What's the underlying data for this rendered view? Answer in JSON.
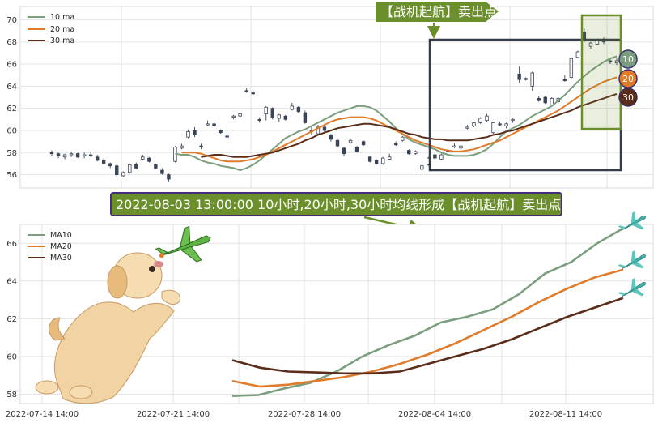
{
  "chart_data": [
    {
      "type": "candlestick",
      "ylim": [
        54.8,
        71.2
      ],
      "yticks": [
        56,
        58,
        60,
        62,
        64,
        66,
        68,
        70
      ],
      "grid": true,
      "legend_position": "top-left",
      "legend": [
        "10 ma",
        "20 ma",
        "30 ma"
      ],
      "colors": {
        "ma10": "#7a9e7e",
        "ma20": "#e07b2a",
        "ma30": "#5a2d1a",
        "up": "#ffffff",
        "down": "#3a4558"
      },
      "candles": [
        [
          58.0,
          58.2,
          57.7,
          57.9
        ],
        [
          57.9,
          58.0,
          57.5,
          57.7
        ],
        [
          57.6,
          57.9,
          57.4,
          57.8
        ],
        [
          57.8,
          58.1,
          57.6,
          57.9
        ],
        [
          57.9,
          58.0,
          57.5,
          57.6
        ],
        [
          57.7,
          58.0,
          57.5,
          57.8
        ],
        [
          57.8,
          58.1,
          57.6,
          57.7
        ],
        [
          57.6,
          57.8,
          57.2,
          57.3
        ],
        [
          57.3,
          57.5,
          56.9,
          57.0
        ],
        [
          57.0,
          57.1,
          56.6,
          56.8
        ],
        [
          56.8,
          57.0,
          55.8,
          56.0
        ],
        [
          55.9,
          56.3,
          55.8,
          56.2
        ],
        [
          56.2,
          57.0,
          56.1,
          56.9
        ],
        [
          56.9,
          57.1,
          56.5,
          56.6
        ],
        [
          57.4,
          57.8,
          57.3,
          57.6
        ],
        [
          57.5,
          57.6,
          57.1,
          57.2
        ],
        [
          56.9,
          57.0,
          56.5,
          56.6
        ],
        [
          56.4,
          56.6,
          56.0,
          56.1
        ],
        [
          56.0,
          56.1,
          55.4,
          55.6
        ],
        [
          57.2,
          58.6,
          57.1,
          58.5
        ],
        [
          58.4,
          58.8,
          58.3,
          58.6
        ],
        [
          59.4,
          60.1,
          59.3,
          59.9
        ],
        [
          60.0,
          60.3,
          59.4,
          59.6
        ],
        [
          58.6,
          58.8,
          58.3,
          58.5
        ],
        [
          60.5,
          60.9,
          60.4,
          60.6
        ],
        [
          60.6,
          60.7,
          60.3,
          60.4
        ],
        [
          60.0,
          60.1,
          59.7,
          59.8
        ],
        [
          59.5,
          59.7,
          59.3,
          59.4
        ],
        [
          61.2,
          61.4,
          61.0,
          61.3
        ],
        [
          61.3,
          61.6,
          61.2,
          61.5
        ],
        [
          63.6,
          63.8,
          63.4,
          63.5
        ],
        [
          63.4,
          63.6,
          63.2,
          63.3
        ],
        [
          61.0,
          61.2,
          60.7,
          60.9
        ],
        [
          61.5,
          62.2,
          60.9,
          62.1
        ],
        [
          62.0,
          62.1,
          61.0,
          61.2
        ],
        [
          61.1,
          61.5,
          60.8,
          61.4
        ],
        [
          61.3,
          61.4,
          60.9,
          61.0
        ],
        [
          61.9,
          62.5,
          61.8,
          62.2
        ],
        [
          62.1,
          62.2,
          61.6,
          61.7
        ],
        [
          61.6,
          61.8,
          60.6,
          60.7
        ],
        [
          60.0,
          60.3,
          59.6,
          59.9
        ],
        [
          59.7,
          60.5,
          59.6,
          60.3
        ],
        [
          60.3,
          60.6,
          59.8,
          60.0
        ],
        [
          59.6,
          59.7,
          59.0,
          59.2
        ],
        [
          59.1,
          59.2,
          58.5,
          58.6
        ],
        [
          58.4,
          58.5,
          57.7,
          57.9
        ],
        [
          58.9,
          59.2,
          58.8,
          59.1
        ],
        [
          58.5,
          58.6,
          58.0,
          58.1
        ],
        [
          59.0,
          59.1,
          58.6,
          58.7
        ],
        [
          57.6,
          57.7,
          57.1,
          57.2
        ],
        [
          57.3,
          57.4,
          56.9,
          57.0
        ],
        [
          57.0,
          57.6,
          56.9,
          57.5
        ],
        [
          57.4,
          57.9,
          57.3,
          57.6
        ],
        [
          58.8,
          59.0,
          58.6,
          58.7
        ],
        [
          59.1,
          59.5,
          59.0,
          59.4
        ],
        [
          58.2,
          58.3,
          57.8,
          57.9
        ],
        [
          57.9,
          58.2,
          57.8,
          58.1
        ],
        [
          56.5,
          56.9,
          56.4,
          56.8
        ],
        [
          56.9,
          57.6,
          56.8,
          57.5
        ],
        [
          57.8,
          58.1,
          57.3,
          57.5
        ],
        [
          57.4,
          57.9,
          57.3,
          57.8
        ],
        [
          58.2,
          58.4,
          57.9,
          58.1
        ],
        [
          58.5,
          58.9,
          58.4,
          58.6
        ],
        [
          58.4,
          58.7,
          58.3,
          58.6
        ],
        [
          60.2,
          60.5,
          60.1,
          60.3
        ],
        [
          60.4,
          60.8,
          60.3,
          60.7
        ],
        [
          60.7,
          61.2,
          60.6,
          61.1
        ],
        [
          60.9,
          61.5,
          60.8,
          61.3
        ],
        [
          59.8,
          60.8,
          59.7,
          60.7
        ],
        [
          60.6,
          60.8,
          60.4,
          60.5
        ],
        [
          60.4,
          60.7,
          60.2,
          60.6
        ],
        [
          60.9,
          61.1,
          60.7,
          61.0
        ],
        [
          65.1,
          65.8,
          64.3,
          64.6
        ],
        [
          64.7,
          64.8,
          64.5,
          64.6
        ],
        [
          64.0,
          65.3,
          63.6,
          65.2
        ],
        [
          62.9,
          63.1,
          62.6,
          62.7
        ],
        [
          63.0,
          63.1,
          62.4,
          62.5
        ],
        [
          62.3,
          63.0,
          62.2,
          62.9
        ],
        [
          62.6,
          63.0,
          62.5,
          62.9
        ],
        [
          64.6,
          65.0,
          64.4,
          64.5
        ],
        [
          64.8,
          66.6,
          64.6,
          66.5
        ],
        [
          66.6,
          67.2,
          66.5,
          67.1
        ],
        [
          68.9,
          69.2,
          68.0,
          68.1
        ],
        [
          67.6,
          68.0,
          67.4,
          67.9
        ],
        [
          67.8,
          68.3,
          67.7,
          68.2
        ],
        [
          68.2,
          68.4,
          67.8,
          68.0
        ],
        [
          66.3,
          66.4,
          66.0,
          66.2
        ],
        [
          66.1,
          66.5,
          65.9,
          66.3
        ]
      ],
      "ma10": [
        57.9,
        57.8,
        57.8,
        57.6,
        57.3,
        57.1,
        57.0,
        56.8,
        56.7,
        56.6,
        56.4,
        56.6,
        56.9,
        57.3,
        57.8,
        58.3,
        58.8,
        59.3,
        59.6,
        59.9,
        60.1,
        60.4,
        60.7,
        61.0,
        61.3,
        61.6,
        61.8,
        62.0,
        62.2,
        62.2,
        62.1,
        61.8,
        61.3,
        60.8,
        60.2,
        59.7,
        59.2,
        58.9,
        58.7,
        58.5,
        58.3,
        58.0,
        57.8,
        57.7,
        57.7,
        57.7,
        57.8,
        58.0,
        58.3,
        58.8,
        59.4,
        59.9,
        60.2,
        60.5,
        60.9,
        61.3,
        61.6,
        61.9,
        62.2,
        62.7,
        63.2,
        63.8,
        64.4,
        64.9,
        65.4,
        65.8,
        66.2,
        66.5,
        66.7
      ],
      "ma20": [
        58.0,
        58.0,
        58.0,
        57.9,
        57.7,
        57.5,
        57.3,
        57.2,
        57.2,
        57.2,
        57.3,
        57.4,
        57.6,
        57.8,
        58.1,
        58.4,
        58.7,
        59.0,
        59.3,
        59.6,
        59.9,
        60.2,
        60.5,
        60.8,
        61.0,
        61.1,
        61.2,
        61.2,
        61.2,
        61.1,
        60.9,
        60.6,
        60.3,
        60.0,
        59.7,
        59.4,
        59.1,
        58.9,
        58.7,
        58.5,
        58.3,
        58.2,
        58.1,
        58.1,
        58.2,
        58.3,
        58.5,
        58.7,
        58.9,
        59.1,
        59.4,
        59.7,
        60.0,
        60.3,
        60.6,
        60.9,
        61.2,
        61.5,
        61.8,
        62.2,
        62.6,
        63.0,
        63.4,
        63.8,
        64.1,
        64.4,
        64.6,
        64.8
      ],
      "ma30": [
        57.6,
        57.7,
        57.8,
        57.8,
        57.7,
        57.6,
        57.6,
        57.6,
        57.7,
        57.8,
        57.9,
        58.0,
        58.2,
        58.4,
        58.6,
        58.8,
        59.1,
        59.3,
        59.6,
        59.8,
        60.0,
        60.2,
        60.3,
        60.4,
        60.5,
        60.6,
        60.6,
        60.5,
        60.4,
        60.3,
        60.1,
        59.9,
        59.7,
        59.6,
        59.4,
        59.3,
        59.2,
        59.2,
        59.1,
        59.1,
        59.1,
        59.1,
        59.2,
        59.3,
        59.4,
        59.6,
        59.7,
        59.9,
        60.0,
        60.2,
        60.4,
        60.6,
        60.8,
        61.0,
        61.2,
        61.4,
        61.6,
        61.8,
        62.1,
        62.3,
        62.5,
        62.7,
        62.9,
        63.1,
        63.3
      ]
    },
    {
      "type": "line",
      "ylim": [
        57.5,
        67.0
      ],
      "yticks": [
        58,
        60,
        62,
        64,
        66
      ],
      "xticks": [
        "2022-07-14 14:00",
        "2022-07-21 14:00",
        "2022-07-28 14:00",
        "2022-08-04 14:00",
        "2022-08-11 14:00"
      ],
      "grid": true,
      "legend_position": "top-left",
      "series": [
        {
          "name": "MA10",
          "color": "#7a9e7e",
          "values": [
            57.9,
            57.95,
            58.3,
            58.6,
            59.2,
            60.0,
            60.6,
            61.1,
            61.8,
            62.1,
            62.5,
            63.3,
            64.4,
            65.0,
            66.0,
            66.8
          ]
        },
        {
          "name": "MA20",
          "color": "#e07b2a",
          "values": [
            58.7,
            58.4,
            58.5,
            58.7,
            58.9,
            59.2,
            59.6,
            60.1,
            60.7,
            61.4,
            62.1,
            62.9,
            63.6,
            64.2,
            64.6
          ]
        },
        {
          "name": "MA30",
          "color": "#5a2d1a",
          "values": [
            59.8,
            59.4,
            59.2,
            59.15,
            59.1,
            59.1,
            59.2,
            59.6,
            60.0,
            60.4,
            60.9,
            61.5,
            62.1,
            62.6,
            63.1
          ]
        }
      ]
    }
  ],
  "top_banner": "【战机起航】卖出点",
  "main_banner": "2022-08-03 13:00:00 10小时,20小时,30小时均线形成【战机起航】卖出点",
  "badges": [
    "10",
    "20",
    "30"
  ],
  "icons": [
    "puppy-illustration",
    "fighter-jet-icon",
    "airplane-icon"
  ]
}
